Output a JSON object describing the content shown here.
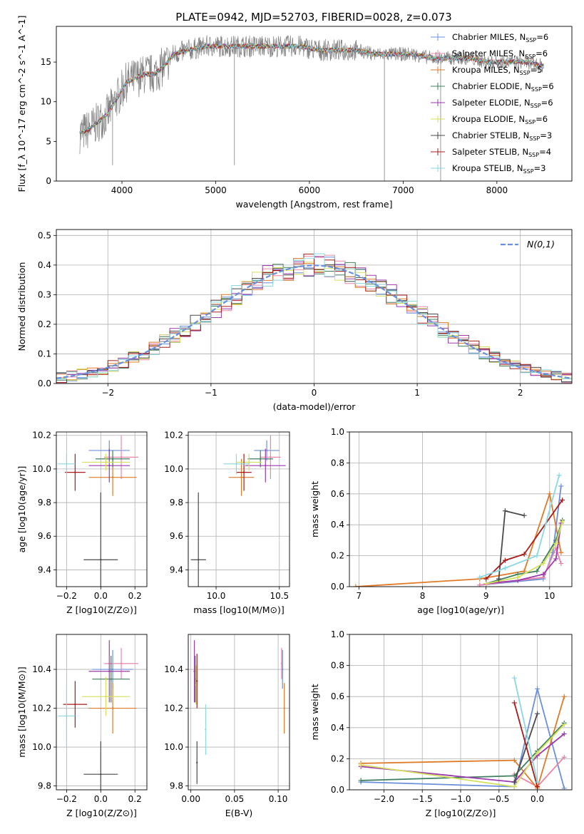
{
  "figure_title": "PLATE=0942, MJD=52703, FIBERID=0028, z=0.073",
  "colors": {
    "Chabrier MILES": "#6a8fdc",
    "Salpeter MILES": "#e986a8",
    "Kroupa MILES": "#e07a26",
    "Chabrier ELODIE": "#3f7f5f",
    "Salpeter ELODIE": "#9c3aae",
    "Kroupa ELODIE": "#d4e05a",
    "Chabrier STELIB": "#4a4a4a",
    "Salpeter STELIB": "#a81c1c",
    "Kroupa STELIB": "#8ad8e0",
    "data": "#808080",
    "normal": "#6a8fdc"
  },
  "chart_data": [
    {
      "type": "line",
      "panel": "spectrum",
      "title": "PLATE=0942, MJD=52703, FIBERID=0028, z=0.073",
      "xlabel": "wavelength [Angstrom, rest frame]",
      "ylabel": "Flux [f_λ 10^-17 erg cm^-2 s^-1 A^-1]",
      "xlim": [
        3300,
        8800
      ],
      "ylim": [
        0,
        19.5
      ],
      "xticks": [
        4000,
        5000,
        6000,
        7000,
        8000
      ],
      "yticks": [
        0,
        5,
        10,
        15
      ],
      "legend_position": "top-right",
      "legend": [
        {
          "label": "Chabrier MILES",
          "nssp": "6"
        },
        {
          "label": "Salpeter MILES",
          "nssp": "6"
        },
        {
          "label": "Kroupa MILES",
          "nssp": "5"
        },
        {
          "label": "Chabrier ELODIE",
          "nssp": "6"
        },
        {
          "label": "Salpeter ELODIE",
          "nssp": "6"
        },
        {
          "label": "Kroupa ELODIE",
          "nssp": "6"
        },
        {
          "label": "Chabrier STELIB",
          "nssp": "3"
        },
        {
          "label": "Salpeter STELIB",
          "nssp": "4"
        },
        {
          "label": "Kroupa STELIB",
          "nssp": "3"
        }
      ],
      "continuum": {
        "x": [
          3550,
          3650,
          3750,
          3850,
          3950,
          4050,
          4150,
          4250,
          4350,
          4450,
          4550,
          4700,
          4900,
          5100,
          5300,
          5500,
          5700,
          5900,
          6100,
          6300,
          6500,
          6700,
          6900,
          7100,
          7300,
          7500,
          7700,
          7900,
          8100,
          8300,
          8500
        ],
        "y": [
          6.0,
          6.5,
          7.5,
          8.5,
          10.5,
          12.5,
          13.0,
          13.5,
          13.5,
          14.5,
          16.0,
          16.5,
          17.0,
          17.0,
          17.0,
          17.0,
          17.0,
          17.0,
          16.5,
          16.5,
          16.5,
          16.0,
          16.0,
          16.0,
          15.5,
          15.5,
          15.5,
          15.0,
          15.0,
          15.0,
          14.5
        ]
      }
    },
    {
      "type": "line",
      "panel": "residual-distribution",
      "xlabel": "(data-model)/error",
      "ylabel": "Normed distribution",
      "xlim": [
        -2.5,
        2.5
      ],
      "ylim": [
        0,
        0.52
      ],
      "xticks": [
        -2,
        -1,
        0,
        1,
        2
      ],
      "yticks": [
        0.0,
        0.1,
        0.2,
        0.3,
        0.4,
        0.5
      ],
      "legend_position": "top-right",
      "legend": [
        {
          "label": "N(0,1)"
        }
      ]
    },
    {
      "type": "scatter",
      "panel": "age-vs-Z",
      "xlabel": "Z [log10(Z/Z⊙)]",
      "ylabel": "age [log10(age/yr)]",
      "xlim": [
        -0.26,
        0.27
      ],
      "ylim": [
        9.3,
        10.22
      ],
      "xticks": [
        -0.2,
        0.0,
        0.2
      ],
      "yticks": [
        9.4,
        9.6,
        9.8,
        10.0,
        10.2
      ],
      "series": [
        {
          "name": "Chabrier MILES",
          "x": 0.05,
          "xerr": 0.12,
          "y": 10.11,
          "yerr": 0.06
        },
        {
          "name": "Salpeter MILES",
          "x": 0.12,
          "xerr": 0.1,
          "y": 10.07,
          "yerr": 0.13
        },
        {
          "name": "Kroupa MILES",
          "x": 0.07,
          "xerr": 0.14,
          "y": 9.95,
          "yerr": 0.11
        },
        {
          "name": "Chabrier ELODIE",
          "x": 0.07,
          "xerr": 0.1,
          "y": 10.06,
          "yerr": 0.05
        },
        {
          "name": "Salpeter ELODIE",
          "x": 0.05,
          "xerr": 0.12,
          "y": 10.02,
          "yerr": 0.1
        },
        {
          "name": "Kroupa ELODIE",
          "x": 0.03,
          "xerr": 0.14,
          "y": 10.04,
          "yerr": 0.05
        },
        {
          "name": "Chabrier STELIB",
          "x": 0.0,
          "xerr": 0.1,
          "y": 9.46,
          "yerr": 0.4
        },
        {
          "name": "Salpeter STELIB",
          "x": -0.15,
          "xerr": 0.06,
          "y": 9.98,
          "yerr": 0.11
        },
        {
          "name": "Kroupa STELIB",
          "x": -0.2,
          "xerr": 0.05,
          "y": 10.03,
          "yerr": 0.06
        }
      ]
    },
    {
      "type": "scatter",
      "panel": "age-vs-mass",
      "xlabel": "mass [log10(M/M⊙)]",
      "ylabel": "",
      "xlim": [
        9.78,
        10.58
      ],
      "ylim": [
        9.3,
        10.22
      ],
      "xticks": [
        10.0,
        10.5
      ],
      "yticks": [
        9.4,
        9.6,
        9.8,
        10.0,
        10.2
      ],
      "series": [
        {
          "name": "Chabrier MILES",
          "x": 10.4,
          "xerr": 0.1,
          "y": 10.11,
          "yerr": 0.06
        },
        {
          "name": "Salpeter MILES",
          "x": 10.43,
          "xerr": 0.08,
          "y": 10.07,
          "yerr": 0.13
        },
        {
          "name": "Kroupa MILES",
          "x": 10.2,
          "xerr": 0.1,
          "y": 9.95,
          "yerr": 0.11
        },
        {
          "name": "Chabrier ELODIE",
          "x": 10.35,
          "xerr": 0.1,
          "y": 10.06,
          "yerr": 0.05
        },
        {
          "name": "Salpeter ELODIE",
          "x": 10.39,
          "xerr": 0.16,
          "y": 10.02,
          "yerr": 0.1
        },
        {
          "name": "Kroupa ELODIE",
          "x": 10.26,
          "xerr": 0.1,
          "y": 10.04,
          "yerr": 0.05
        },
        {
          "name": "Chabrier STELIB",
          "x": 9.86,
          "xerr": 0.06,
          "y": 9.46,
          "yerr": 0.4
        },
        {
          "name": "Salpeter STELIB",
          "x": 10.22,
          "xerr": 0.06,
          "y": 9.98,
          "yerr": 0.11
        },
        {
          "name": "Kroupa STELIB",
          "x": 10.16,
          "xerr": 0.1,
          "y": 10.03,
          "yerr": 0.06
        }
      ]
    },
    {
      "type": "line",
      "panel": "mass-weight-vs-age",
      "xlabel": "age [log10(age/yr)]",
      "ylabel": "mass weight",
      "xlim": [
        6.85,
        10.35
      ],
      "ylim": [
        0,
        1.0
      ],
      "xticks": [
        7,
        8,
        9,
        10
      ],
      "yticks": [
        0.0,
        0.2,
        0.4,
        0.6,
        0.8,
        1.0
      ],
      "series": [
        {
          "name": "Chabrier MILES",
          "x": [
            8.9,
            9.9,
            10.05,
            10.18
          ],
          "y": [
            0.01,
            0.05,
            0.22,
            0.65
          ]
        },
        {
          "name": "Salpeter MILES",
          "x": [
            8.9,
            9.9,
            10.1,
            10.18
          ],
          "y": [
            0.01,
            0.06,
            0.25,
            0.15
          ]
        },
        {
          "name": "Kroupa MILES",
          "x": [
            6.95,
            8.9,
            9.6,
            10.0,
            10.18
          ],
          "y": [
            0.0,
            0.05,
            0.1,
            0.6,
            0.22
          ]
        },
        {
          "name": "Chabrier ELODIE",
          "x": [
            9.0,
            9.5,
            9.8,
            10.1,
            10.2
          ],
          "y": [
            0.02,
            0.08,
            0.1,
            0.3,
            0.43
          ]
        },
        {
          "name": "Salpeter ELODIE",
          "x": [
            9.0,
            9.5,
            9.9,
            10.1,
            10.18
          ],
          "y": [
            0.02,
            0.04,
            0.08,
            0.18,
            0.41
          ]
        },
        {
          "name": "Kroupa ELODIE",
          "x": [
            9.0,
            9.5,
            9.9,
            10.1,
            10.2
          ],
          "y": [
            0.02,
            0.06,
            0.15,
            0.28,
            0.42
          ]
        },
        {
          "name": "Chabrier STELIB",
          "x": [
            9.2,
            9.3,
            9.6
          ],
          "y": [
            0.05,
            0.49,
            0.46
          ]
        },
        {
          "name": "Salpeter STELIB",
          "x": [
            9.0,
            9.3,
            9.6,
            10.2
          ],
          "y": [
            0.05,
            0.17,
            0.21,
            0.56
          ]
        },
        {
          "name": "Kroupa STELIB",
          "x": [
            8.9,
            9.3,
            9.8,
            10.15
          ],
          "y": [
            0.06,
            0.12,
            0.2,
            0.72
          ]
        }
      ]
    },
    {
      "type": "scatter",
      "panel": "mass-vs-Z",
      "xlabel": "Z [log10(Z/Z⊙)]",
      "ylabel": "mass [log10(M/M⊙)]",
      "xlim": [
        -0.26,
        0.27
      ],
      "ylim": [
        9.78,
        10.58
      ],
      "xticks": [
        -0.2,
        0.0,
        0.2
      ],
      "yticks": [
        9.8,
        10.0,
        10.2,
        10.4
      ],
      "series": [
        {
          "name": "Chabrier MILES",
          "x": 0.07,
          "xerr": 0.12,
          "y": 10.4,
          "yerr": 0.1
        },
        {
          "name": "Salpeter MILES",
          "x": 0.12,
          "xerr": 0.1,
          "y": 10.43,
          "yerr": 0.08
        },
        {
          "name": "Kroupa MILES",
          "x": 0.07,
          "xerr": 0.14,
          "y": 10.2,
          "yerr": 0.13
        },
        {
          "name": "Chabrier ELODIE",
          "x": 0.06,
          "xerr": 0.11,
          "y": 10.35,
          "yerr": 0.12
        },
        {
          "name": "Salpeter ELODIE",
          "x": 0.05,
          "xerr": 0.12,
          "y": 10.39,
          "yerr": 0.16
        },
        {
          "name": "Kroupa ELODIE",
          "x": 0.03,
          "xerr": 0.14,
          "y": 10.26,
          "yerr": 0.1
        },
        {
          "name": "Chabrier STELIB",
          "x": 0.0,
          "xerr": 0.1,
          "y": 9.86,
          "yerr": 0.17
        },
        {
          "name": "Salpeter STELIB",
          "x": -0.15,
          "xerr": 0.07,
          "y": 10.22,
          "yerr": 0.12
        },
        {
          "name": "Kroupa STELIB",
          "x": -0.2,
          "xerr": 0.05,
          "y": 10.16,
          "yerr": 0.16
        }
      ]
    },
    {
      "type": "scatter",
      "panel": "mass-vs-ebv",
      "xlabel": "E(B-V)",
      "ylabel": "",
      "xlim": [
        -0.003,
        0.113
      ],
      "ylim": [
        9.78,
        10.58
      ],
      "xticks": [
        0.0,
        0.05,
        0.1
      ],
      "yticks": [
        9.8,
        10.0,
        10.2,
        10.4
      ],
      "series": [
        {
          "name": "Chabrier MILES",
          "x": 0.105,
          "y": 10.4,
          "yerr": 0.1
        },
        {
          "name": "Salpeter MILES",
          "x": 0.104,
          "y": 10.43,
          "yerr": 0.08
        },
        {
          "name": "Kroupa MILES",
          "x": 0.107,
          "y": 10.2,
          "yerr": 0.13
        },
        {
          "name": "Chabrier ELODIE",
          "x": 0.005,
          "y": 10.35,
          "yerr": 0.12
        },
        {
          "name": "Salpeter ELODIE",
          "x": 0.004,
          "y": 10.39,
          "yerr": 0.16
        },
        {
          "name": "Kroupa ELODIE",
          "x": 0.006,
          "y": 10.32,
          "yerr": 0.1
        },
        {
          "name": "Chabrier STELIB",
          "x": 0.007,
          "y": 9.92,
          "yerr": 0.11
        },
        {
          "name": "Salpeter STELIB",
          "x": 0.007,
          "y": 10.34,
          "yerr": 0.14
        },
        {
          "name": "Kroupa STELIB",
          "x": 0.017,
          "y": 10.09,
          "yerr": 0.13
        }
      ]
    },
    {
      "type": "line",
      "panel": "mass-weight-vs-Z",
      "xlabel": "Z [log10(Z/Z⊙)]",
      "ylabel": "mass weight",
      "xlim": [
        -2.45,
        0.45
      ],
      "ylim": [
        0,
        1.0
      ],
      "xticks": [
        -2.0,
        -1.5,
        -1.0,
        -0.5,
        0.0
      ],
      "yticks": [
        0.0,
        0.2,
        0.4,
        0.6,
        0.8,
        1.0
      ],
      "series": [
        {
          "name": "Chabrier MILES",
          "x": [
            -2.3,
            -0.3,
            0.0,
            0.35
          ],
          "y": [
            0.05,
            0.02,
            0.65,
            0.01
          ]
        },
        {
          "name": "Salpeter MILES",
          "x": [
            -0.3,
            0.0,
            0.35
          ],
          "y": [
            0.1,
            0.02,
            0.21
          ]
        },
        {
          "name": "Kroupa MILES",
          "x": [
            -2.3,
            -0.3,
            0.0,
            0.35
          ],
          "y": [
            0.17,
            0.19,
            0.01,
            0.6
          ]
        },
        {
          "name": "Chabrier ELODIE",
          "x": [
            -2.3,
            -0.3,
            0.0,
            0.35
          ],
          "y": [
            0.06,
            0.09,
            0.25,
            0.43
          ]
        },
        {
          "name": "Salpeter ELODIE",
          "x": [
            -2.3,
            -0.3,
            0.0,
            0.35
          ],
          "y": [
            0.15,
            0.05,
            0.22,
            0.36
          ]
        },
        {
          "name": "Kroupa ELODIE",
          "x": [
            -2.3,
            -0.3,
            0.0,
            0.35
          ],
          "y": [
            0.16,
            0.02,
            0.24,
            0.42
          ]
        },
        {
          "name": "Chabrier STELIB",
          "x": [
            -0.3,
            0.0
          ],
          "y": [
            0.05,
            0.49
          ]
        },
        {
          "name": "Salpeter STELIB",
          "x": [
            -0.3,
            0.0
          ],
          "y": [
            0.56,
            0.02
          ]
        },
        {
          "name": "Kroupa STELIB",
          "x": [
            -0.3,
            0.0
          ],
          "y": [
            0.72,
            0.05
          ]
        }
      ]
    }
  ]
}
